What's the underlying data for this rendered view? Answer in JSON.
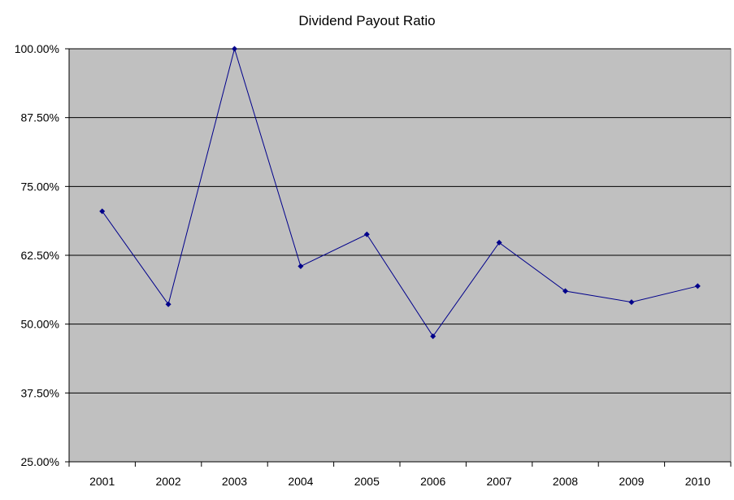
{
  "chart_data": {
    "type": "line",
    "title": "Dividend Payout Ratio",
    "xlabel": "",
    "ylabel": "",
    "categories": [
      "2001",
      "2002",
      "2003",
      "2004",
      "2005",
      "2006",
      "2007",
      "2008",
      "2009",
      "2010"
    ],
    "series": [
      {
        "values": [
          70.5,
          53.6,
          100.0,
          60.5,
          66.3,
          47.8,
          64.8,
          56.0,
          54.0,
          56.9
        ]
      }
    ],
    "ylim": [
      25,
      100
    ],
    "yticks": [
      "25.00%",
      "37.50%",
      "50.00%",
      "62.50%",
      "75.00%",
      "87.50%",
      "100.00%"
    ],
    "ytick_values": [
      25,
      37.5,
      50,
      62.5,
      75,
      87.5,
      100
    ],
    "grid": true,
    "colors": {
      "plot_background": "#c0c0c0",
      "series_line": "#00008b",
      "gridline": "#000000"
    }
  }
}
